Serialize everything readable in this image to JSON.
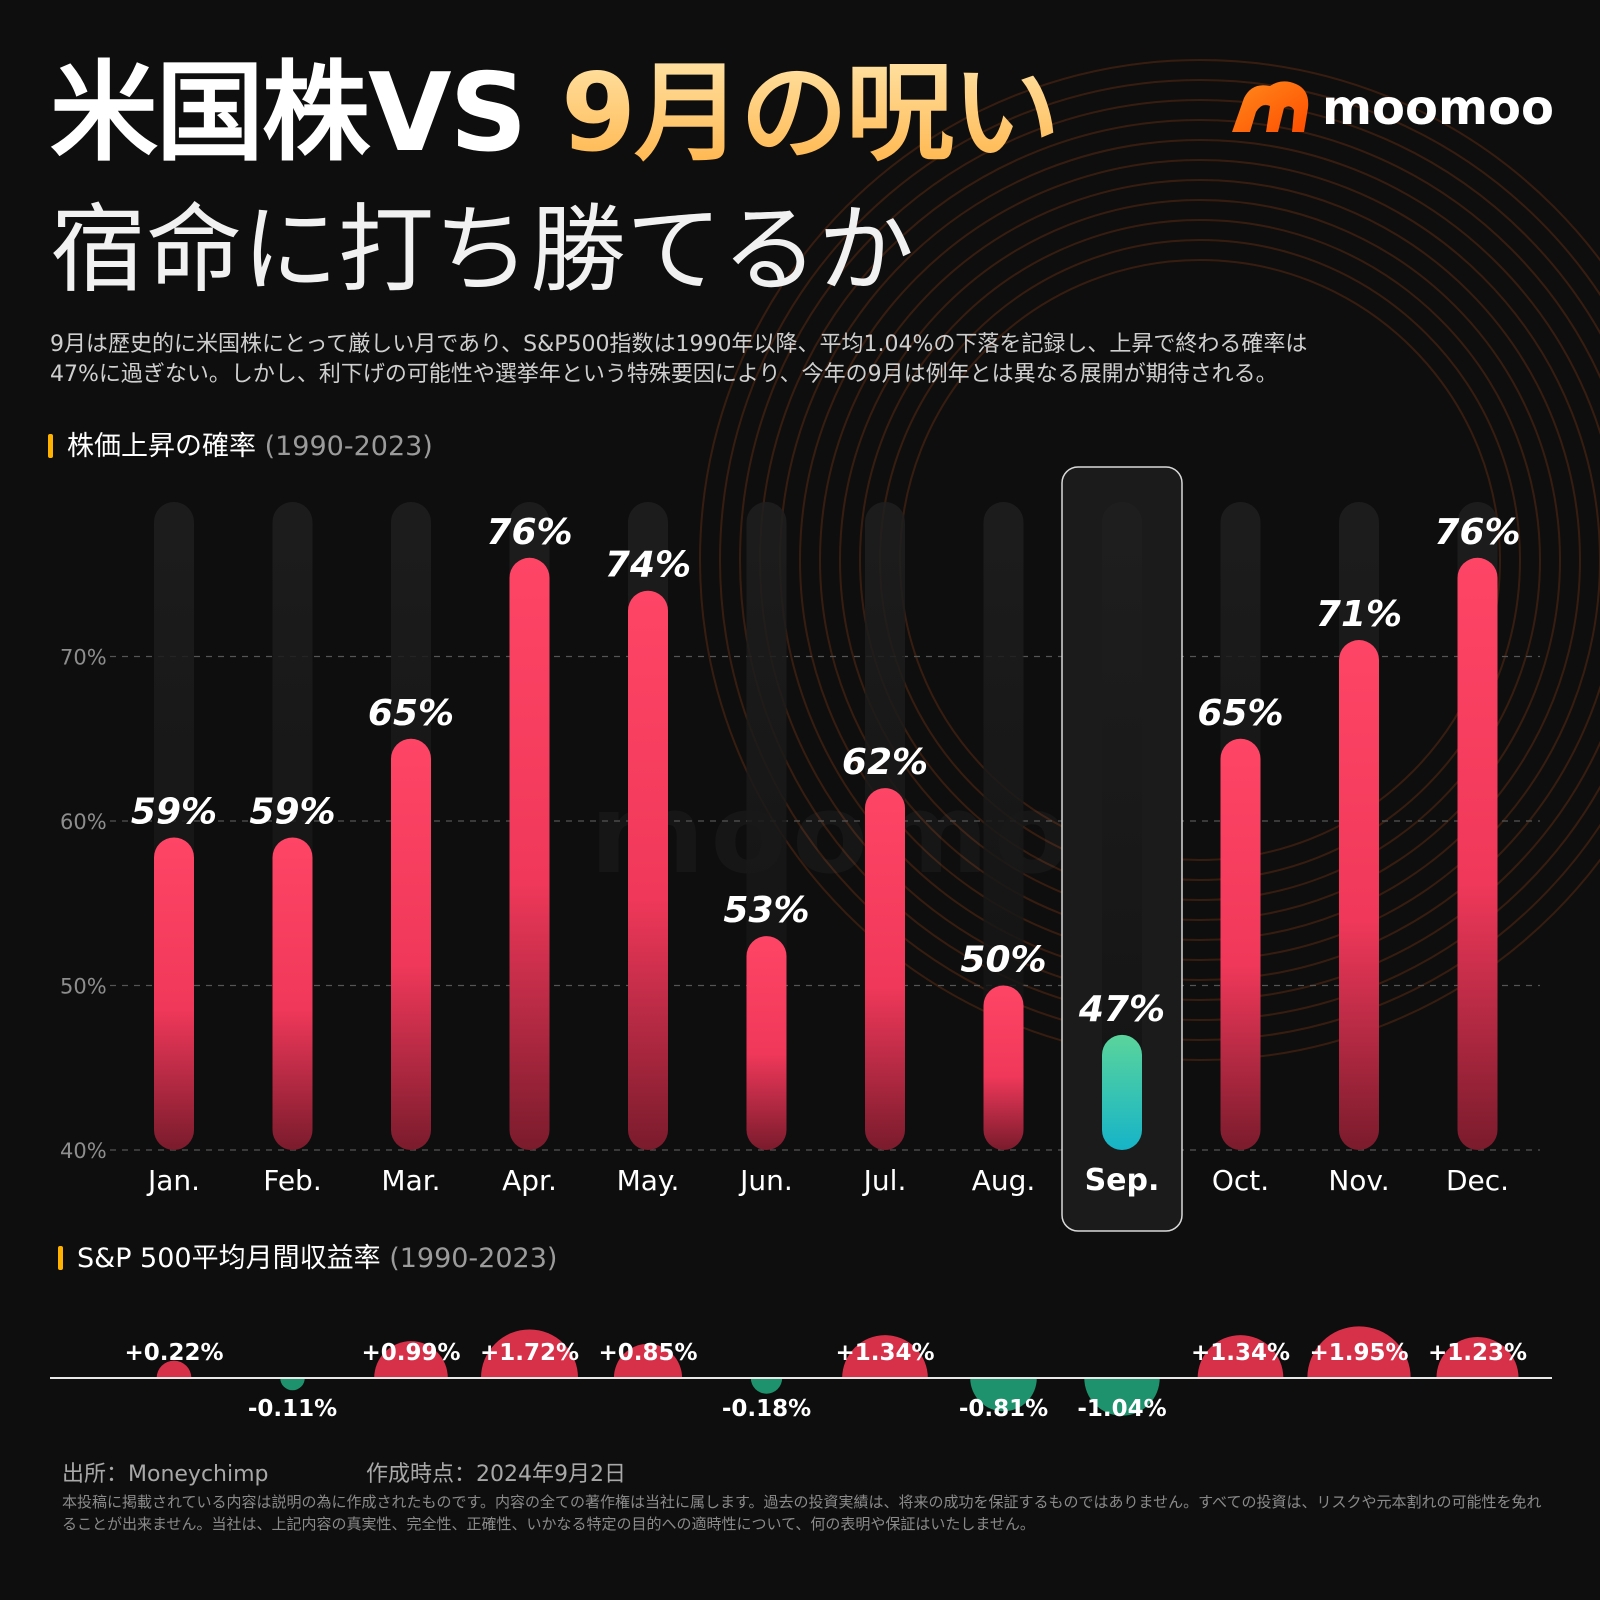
{
  "header": {
    "title_line1_a": "米国株VS ",
    "title_line1_b": "9月の呪い",
    "title_line2": "宿命に打ち勝てるか",
    "brand": "moomoo",
    "intro_line1": "9月は歴史的に米国株にとって厳しい月であり、S&P500指数は1990年以降、平均1.04%の下落を記録し、上昇で終わる確率は",
    "intro_line2": "47%に過ぎない。しかし、利下げの可能性や選挙年という特殊要因により、今年の9月は例年とは異なる展開が期待される。"
  },
  "section1": {
    "title": "株価上昇の確率",
    "period": "(1990-2023)"
  },
  "section2": {
    "title": "S&P 500平均月間収益率",
    "period": "(1990-2023)"
  },
  "watermark": "moomoo",
  "colors": {
    "positive": "#f0385a",
    "negative": "#2bb58a",
    "highlight_bar_top": "#5ad49b",
    "highlight_bar_bottom": "#16b4c8",
    "accent": "#ffb300",
    "background": "#0e0e0e"
  },
  "chart_data": [
    {
      "type": "bar",
      "categories": [
        "Jan.",
        "Feb.",
        "Mar.",
        "Apr.",
        "May.",
        "Jun.",
        "Jul.",
        "Aug.",
        "Sep.",
        "Oct.",
        "Nov.",
        "Dec."
      ],
      "values": [
        59,
        59,
        65,
        76,
        74,
        53,
        62,
        50,
        47,
        65,
        71,
        76
      ],
      "labels": [
        "59%",
        "59%",
        "65%",
        "76%",
        "74%",
        "53%",
        "62%",
        "50%",
        "47%",
        "65%",
        "71%",
        "76%"
      ],
      "ylim": [
        40,
        80
      ],
      "yticks": [
        40,
        50,
        60,
        70
      ],
      "ytick_labels": [
        "40%",
        "50%",
        "60%",
        "70%"
      ],
      "highlight": "Sep.",
      "grid": true
    },
    {
      "type": "bar",
      "categories": [
        "Jan.",
        "Feb.",
        "Mar.",
        "Apr.",
        "May.",
        "Jun.",
        "Jul.",
        "Aug.",
        "Sep.",
        "Oct.",
        "Nov.",
        "Dec."
      ],
      "values": [
        0.22,
        -0.11,
        0.99,
        1.72,
        0.85,
        -0.18,
        1.34,
        -0.81,
        -1.04,
        1.34,
        1.95,
        1.23
      ],
      "labels": [
        "+0.22%",
        "-0.11%",
        "+0.99%",
        "+1.72%",
        "+0.85%",
        "-0.18%",
        "+1.34%",
        "-0.81%",
        "-1.04%",
        "+1.34%",
        "+1.95%",
        "+1.23%"
      ]
    }
  ],
  "footer": {
    "source": "出所：Moneychimp",
    "created": "作成時点：2024年9月2日",
    "disclaimer": "本投稿に掲載されている内容は説明の為に作成されたものです。内容の全ての著作権は当社に属します。過去の投資実績は、将来の成功を保証するものではありません。すべての投資は、リスクや元本割れの可能性を免れることが出来ません。当社は、上記内容の真実性、完全性、正確性、いかなる特定の目的への適時性について、何の表明や保証はいたしません。"
  }
}
